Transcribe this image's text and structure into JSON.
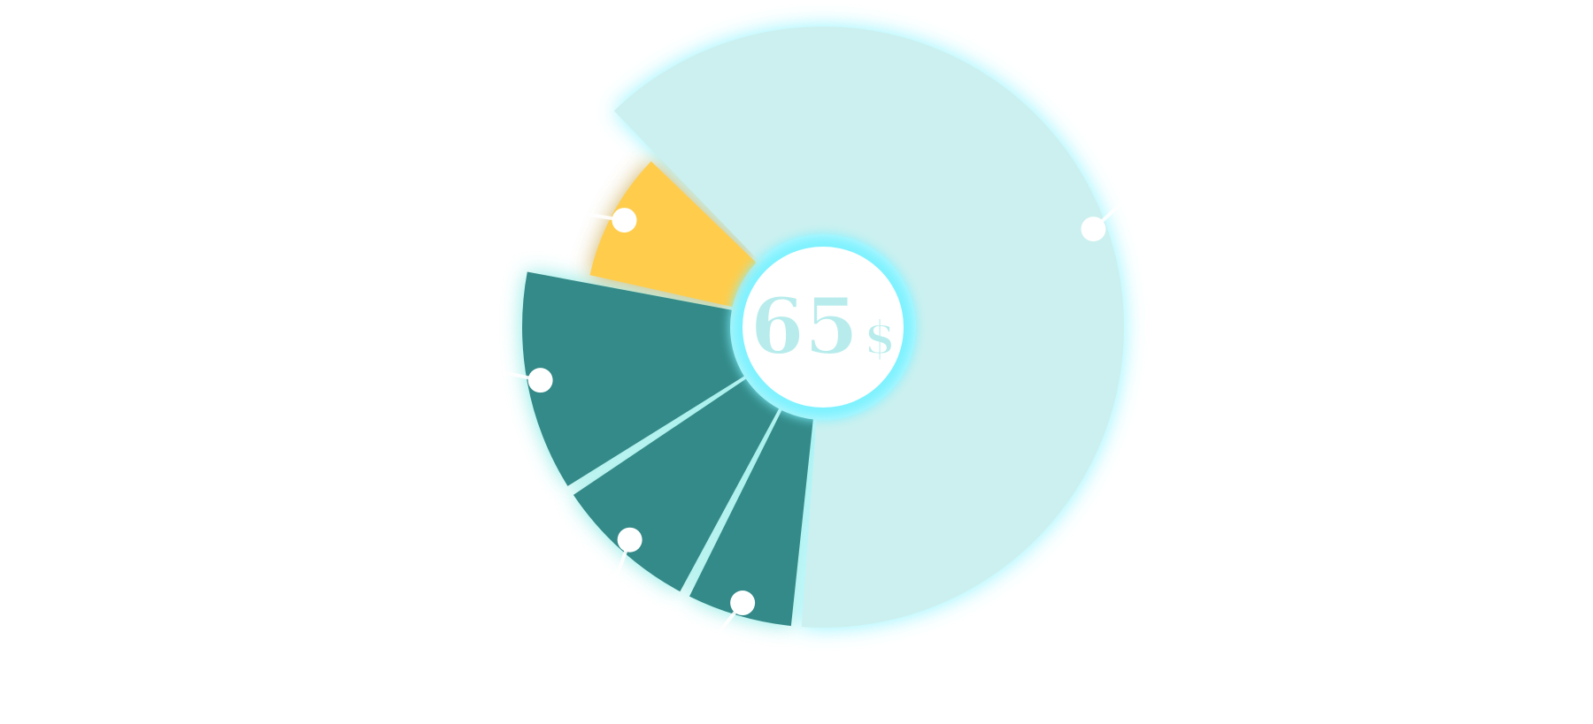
{
  "chart_data": {
    "type": "pie",
    "style": "donut",
    "center_label": {
      "number": "65",
      "unit": "$"
    },
    "slices": [
      {
        "value": 62,
        "color": "#ccf0ef",
        "glow": "#7ff2ff"
      },
      {
        "value": 6,
        "color": "#338a88",
        "glow": "#6fe6e0"
      },
      {
        "value": 8,
        "color": "#338a88",
        "glow": "#6fe6e0"
      },
      {
        "value": 12,
        "color": "#338a88",
        "glow": "#6fe6e0"
      },
      {
        "value": 9,
        "color": "#ffcd4b",
        "glow": "#c8a64a"
      }
    ],
    "colors": {
      "accent_glow": "#7ff2ff",
      "marker": "#ffffff",
      "center_text": "#b8ecec"
    }
  }
}
